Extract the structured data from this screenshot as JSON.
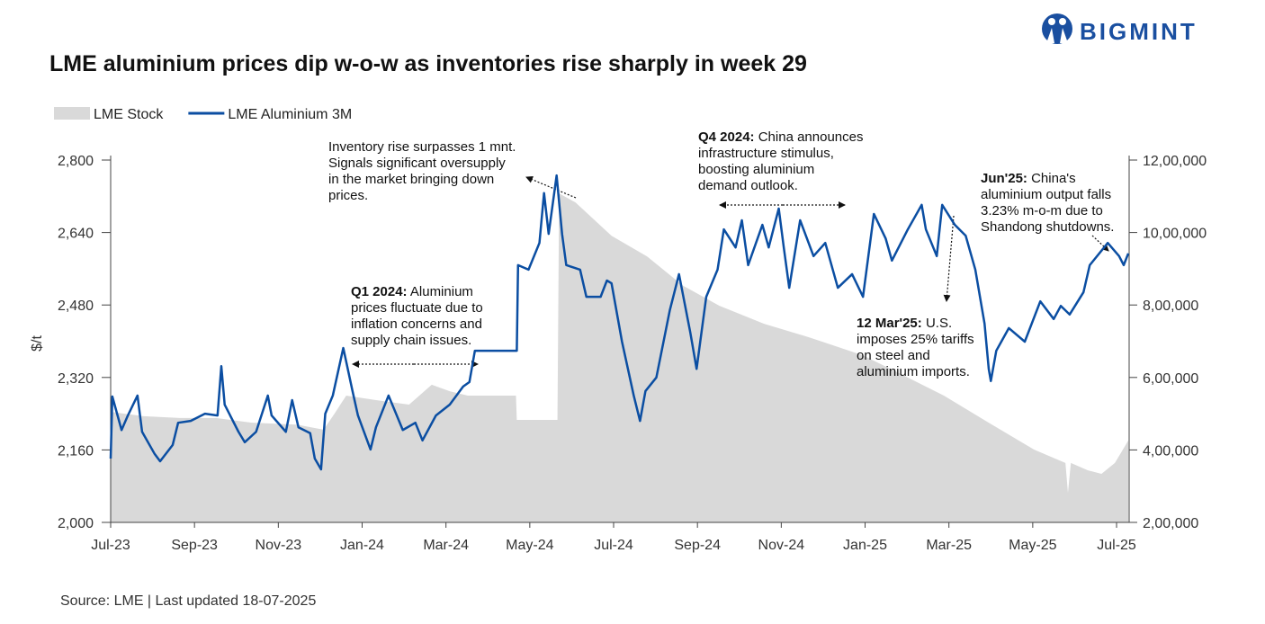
{
  "logo": "BIGMINT",
  "chart_data": {
    "type": "area-line",
    "title": "LME aluminium prices dip w-o-w as inventories rise sharply in week 29",
    "y_label": "$/t",
    "source": "Source: LME | Last updated 18-07-2025",
    "xlim": [
      0,
      24.3
    ],
    "xticks": [
      {
        "value": 0,
        "label": "Jul-23"
      },
      {
        "value": 2,
        "label": "Sep-23"
      },
      {
        "value": 4,
        "label": "Nov-23"
      },
      {
        "value": 6,
        "label": "Jan-24"
      },
      {
        "value": 8,
        "label": "Mar-24"
      },
      {
        "value": 10,
        "label": "May-24"
      },
      {
        "value": 12,
        "label": "Jul-24"
      },
      {
        "value": 14,
        "label": "Sep-24"
      },
      {
        "value": 16,
        "label": "Nov-24"
      },
      {
        "value": 18,
        "label": "Jan-25"
      },
      {
        "value": 20,
        "label": "Mar-25"
      },
      {
        "value": 22,
        "label": "May-25"
      },
      {
        "value": 24,
        "label": "Jul-25"
      }
    ],
    "ylim": [
      2000,
      2800
    ],
    "yticks": [
      {
        "value": 2000,
        "label": "2,000"
      },
      {
        "value": 2160,
        "label": "2,160"
      },
      {
        "value": 2320,
        "label": "2,320"
      },
      {
        "value": 2480,
        "label": "2,480"
      },
      {
        "value": 2640,
        "label": "2,640"
      },
      {
        "value": 2800,
        "label": "2,800"
      }
    ],
    "y2lim": [
      200000,
      1200000
    ],
    "y2ticks": [
      {
        "value": 200000,
        "label": "2,00,000"
      },
      {
        "value": 400000,
        "label": "4,00,000"
      },
      {
        "value": 600000,
        "label": "6,00,000"
      },
      {
        "value": 800000,
        "label": "8,00,000"
      },
      {
        "value": 1000000,
        "label": "10,00,000"
      },
      {
        "value": 1200000,
        "label": "12,00,000"
      }
    ],
    "series": [
      {
        "name": "LME Stock",
        "kind": "area",
        "axis": "y2",
        "color": "#d9d9d9",
        "x": [
          0,
          0.79,
          1.65,
          2.51,
          3.37,
          4.44,
          5.08,
          5.34,
          5.62,
          6.37,
          7.12,
          7.66,
          8.09,
          8.52,
          9.67,
          9.69,
          10.66,
          10.7,
          11.09,
          11.95,
          12.8,
          13.66,
          14.52,
          15.59,
          16.66,
          17.95,
          18.81,
          19.88,
          20.95,
          22.03,
          22.78,
          22.84,
          22.91,
          23.31,
          23.64,
          23.96,
          24.28
        ],
        "values": [
          505000,
          493000,
          488000,
          488000,
          475000,
          470000,
          456000,
          500000,
          550000,
          537000,
          525000,
          580000,
          562000,
          550000,
          550000,
          483000,
          483000,
          1108000,
          1083000,
          991000,
          934000,
          853000,
          798000,
          748000,
          711000,
          661000,
          612000,
          550000,
          475000,
          401000,
          364000,
          282000,
          364000,
          344000,
          334000,
          364000,
          426000
        ]
      },
      {
        "name": "LME Aluminium 3M",
        "kind": "line",
        "color": "#0b4ea2",
        "x": [
          0,
          0.04,
          0.26,
          0.41,
          0.64,
          0.75,
          1.05,
          1.18,
          1.48,
          1.61,
          1.91,
          2.25,
          2.55,
          2.64,
          2.72,
          3.05,
          3.2,
          3.47,
          3.75,
          3.84,
          4.18,
          4.33,
          4.48,
          4.76,
          4.87,
          5.02,
          5.12,
          5.3,
          5.55,
          5.77,
          5.9,
          6.2,
          6.33,
          6.63,
          6.97,
          7.27,
          7.44,
          7.76,
          8.09,
          8.41,
          8.56,
          8.69,
          9.69,
          9.72,
          9.97,
          10.23,
          10.34,
          10.45,
          10.64,
          10.77,
          10.87,
          11.2,
          11.35,
          11.69,
          11.84,
          11.95,
          12.2,
          12.48,
          12.63,
          12.76,
          13.02,
          13.34,
          13.56,
          13.83,
          13.98,
          14.21,
          14.48,
          14.63,
          14.91,
          15.06,
          15.21,
          15.55,
          15.7,
          15.94,
          16.06,
          16.19,
          16.45,
          16.77,
          17.05,
          17.35,
          17.69,
          17.95,
          18.21,
          18.49,
          18.64,
          19.02,
          19.35,
          19.45,
          19.71,
          19.84,
          20.14,
          20.4,
          20.63,
          20.85,
          20.95,
          21.0,
          21.13,
          21.43,
          21.81,
          22.18,
          22.5,
          22.67,
          22.88,
          23.21,
          23.36,
          23.79,
          24.06,
          24.17,
          24.28
        ],
        "values": [
          2141,
          2278,
          2204,
          2236,
          2280,
          2200,
          2151,
          2135,
          2171,
          2220,
          2224,
          2240,
          2236,
          2345,
          2260,
          2200,
          2177,
          2200,
          2280,
          2236,
          2200,
          2270,
          2210,
          2197,
          2141,
          2117,
          2240,
          2280,
          2385,
          2290,
          2236,
          2161,
          2210,
          2280,
          2204,
          2220,
          2181,
          2236,
          2260,
          2300,
          2310,
          2379,
          2379,
          2568,
          2558,
          2617,
          2727,
          2637,
          2766,
          2637,
          2568,
          2558,
          2498,
          2498,
          2534,
          2528,
          2399,
          2280,
          2224,
          2290,
          2320,
          2468,
          2548,
          2419,
          2339,
          2498,
          2558,
          2647,
          2607,
          2667,
          2568,
          2657,
          2607,
          2693,
          2607,
          2518,
          2667,
          2588,
          2617,
          2518,
          2548,
          2498,
          2681,
          2627,
          2578,
          2647,
          2701,
          2647,
          2588,
          2701,
          2657,
          2633,
          2558,
          2439,
          2339,
          2312,
          2379,
          2429,
          2399,
          2488,
          2449,
          2478,
          2459,
          2508,
          2568,
          2617,
          2588,
          2568,
          2594
        ]
      }
    ],
    "annotations": [
      {
        "lead": "",
        "lines": [
          "Inventory rise surpasses 1 mnt.",
          "Signals significant oversupply",
          "in the market bringing down",
          "prices."
        ]
      },
      {
        "lead": "Q1 2024:",
        "lines": [
          " Aluminium",
          "prices fluctuate due to",
          "inflation concerns and",
          "supply chain issues."
        ]
      },
      {
        "lead": "Q4 2024:",
        "lines": [
          " China announces",
          "infrastructure stimulus,",
          "boosting aluminium",
          "demand outlook."
        ]
      },
      {
        "lead": "12 Mar'25:",
        "lines": [
          " U.S.",
          "imposes 25% tariffs",
          "on steel and",
          "aluminium imports."
        ]
      },
      {
        "lead": "Jun'25:",
        "lines": [
          " China's",
          "aluminium output falls",
          "3.23% m-o-m due to",
          "Shandong shutdowns."
        ]
      }
    ]
  }
}
